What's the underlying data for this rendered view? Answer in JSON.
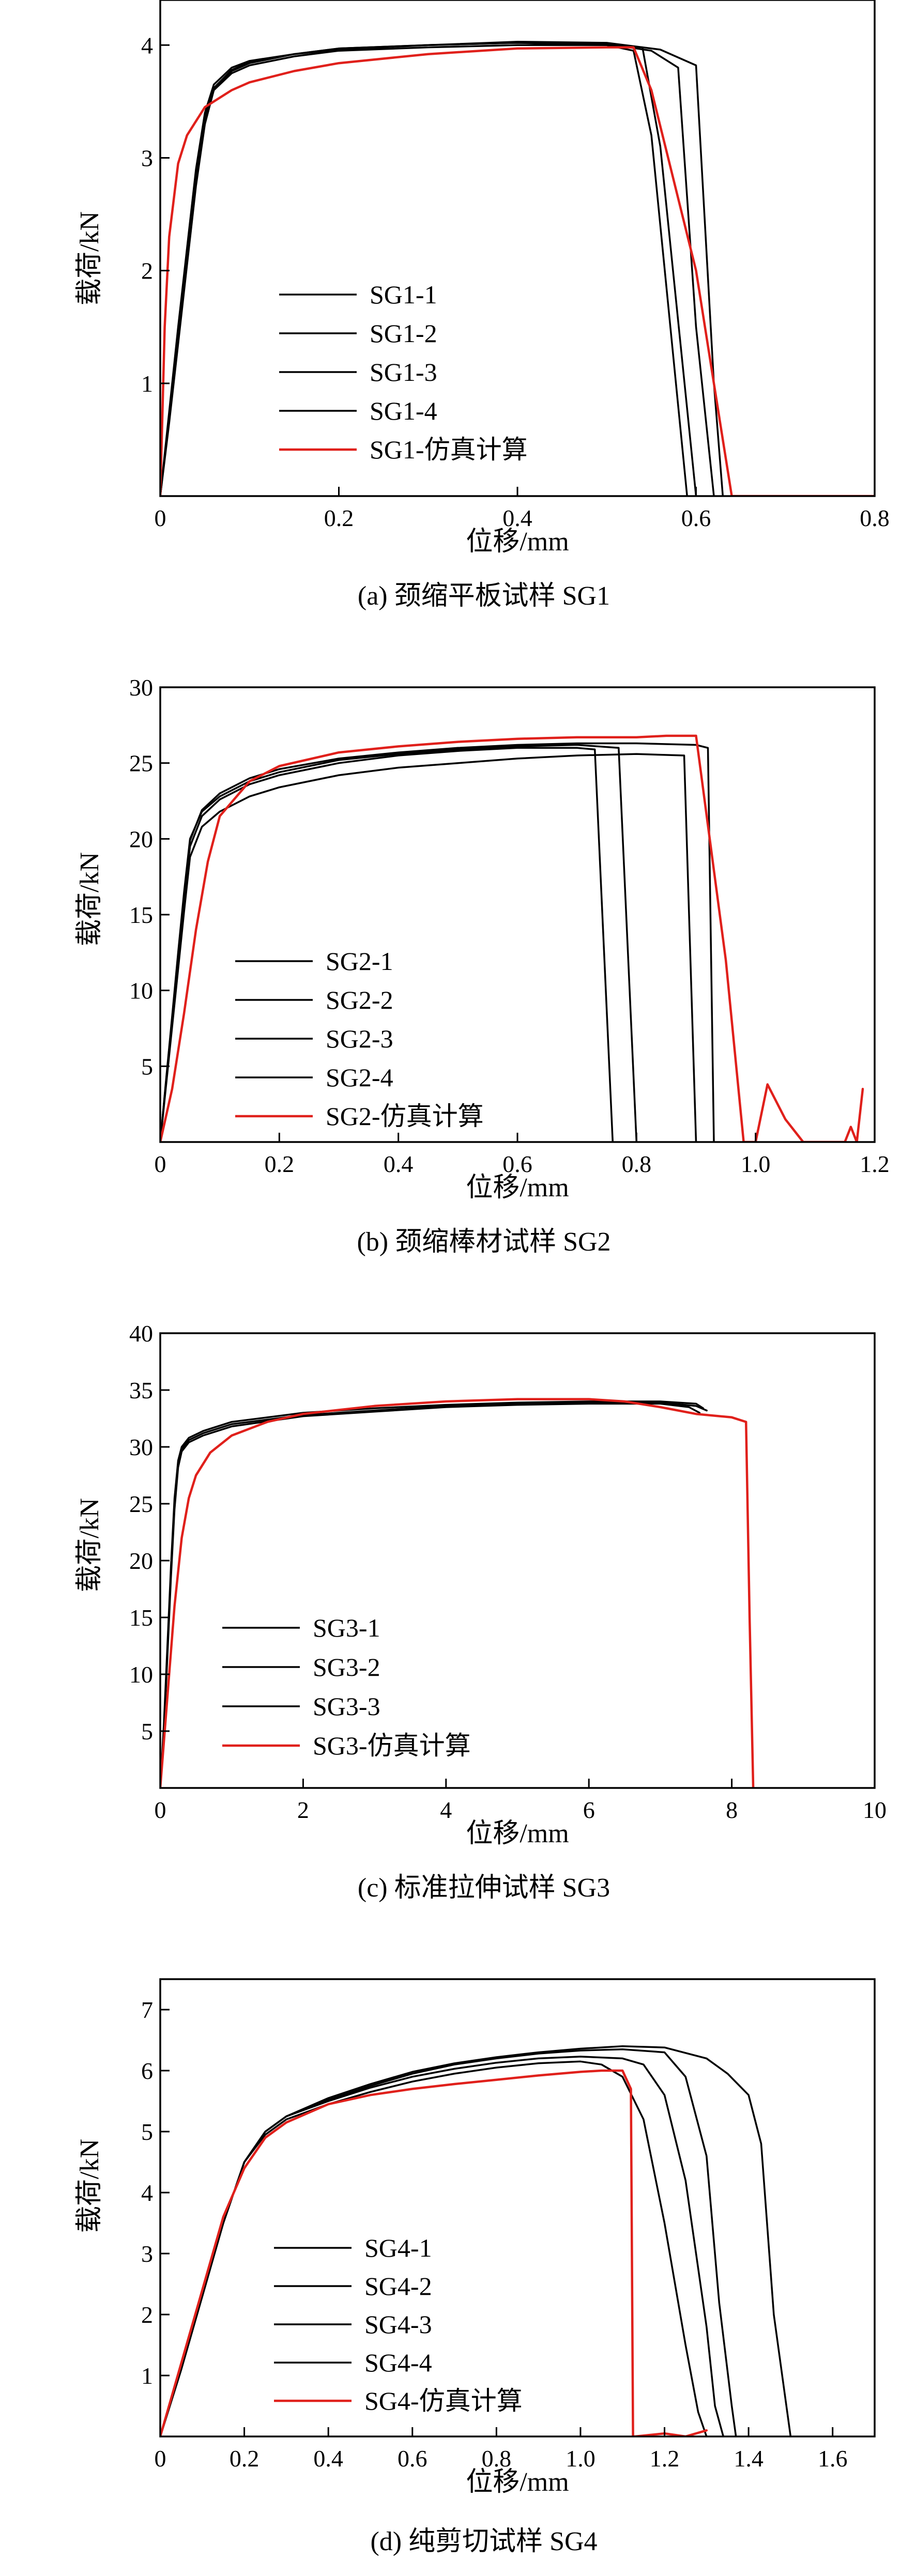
{
  "colors": {
    "experiment": "#000000",
    "simulation": "#e0201b",
    "axis": "#000000",
    "background": "#ffffff"
  },
  "chart_data": [
    {
      "type": "line",
      "caption": "(a) 颈缩平板试样 SG1",
      "xlabel": "位移/mm",
      "ylabel": "载荷/kN",
      "xlim": [
        0,
        0.8
      ],
      "ylim": [
        0,
        4.4
      ],
      "xticks": [
        "0",
        "0.2",
        "0.4",
        "0.6",
        "0.8"
      ],
      "yticks": [
        "1",
        "2",
        "3",
        "4"
      ],
      "grid": false,
      "legend_position": "left-bottom",
      "series": [
        {
          "name": "SG1-1",
          "color": "#000000",
          "x": [
            0,
            0.01,
            0.02,
            0.03,
            0.04,
            0.05,
            0.06,
            0.08,
            0.1,
            0.15,
            0.2,
            0.3,
            0.4,
            0.5,
            0.54,
            0.56,
            0.6
          ],
          "y": [
            0,
            0.7,
            1.4,
            2.1,
            2.8,
            3.35,
            3.6,
            3.75,
            3.82,
            3.9,
            3.95,
            3.98,
            4.0,
            4.0,
            3.98,
            3.1,
            0
          ]
        },
        {
          "name": "SG1-2",
          "color": "#000000",
          "x": [
            0,
            0.01,
            0.02,
            0.03,
            0.04,
            0.05,
            0.06,
            0.08,
            0.1,
            0.15,
            0.2,
            0.3,
            0.4,
            0.5,
            0.53,
            0.55,
            0.59
          ],
          "y": [
            0,
            0.75,
            1.5,
            2.2,
            2.9,
            3.4,
            3.65,
            3.8,
            3.86,
            3.92,
            3.97,
            4.0,
            4.02,
            4.0,
            3.95,
            3.2,
            0
          ]
        },
        {
          "name": "SG1-3",
          "color": "#000000",
          "x": [
            0,
            0.01,
            0.02,
            0.03,
            0.04,
            0.05,
            0.06,
            0.08,
            0.1,
            0.15,
            0.2,
            0.3,
            0.4,
            0.5,
            0.55,
            0.58,
            0.6,
            0.62
          ],
          "y": [
            0,
            0.7,
            1.45,
            2.15,
            2.85,
            3.35,
            3.62,
            3.78,
            3.85,
            3.92,
            3.97,
            4.0,
            4.02,
            4.01,
            3.95,
            3.8,
            1.5,
            0
          ]
        },
        {
          "name": "SG1-4",
          "color": "#000000",
          "x": [
            0,
            0.01,
            0.02,
            0.03,
            0.04,
            0.05,
            0.06,
            0.08,
            0.1,
            0.15,
            0.2,
            0.3,
            0.4,
            0.5,
            0.56,
            0.6,
            0.62,
            0.63
          ],
          "y": [
            0,
            0.65,
            1.35,
            2.05,
            2.75,
            3.3,
            3.6,
            3.77,
            3.84,
            3.92,
            3.96,
            4.0,
            4.03,
            4.02,
            3.96,
            3.82,
            1.0,
            0
          ]
        },
        {
          "name": "SG1-仿真计算",
          "color": "#e0201b",
          "x": [
            0,
            0.005,
            0.01,
            0.02,
            0.03,
            0.05,
            0.08,
            0.1,
            0.15,
            0.2,
            0.3,
            0.4,
            0.5,
            0.53,
            0.55,
            0.6,
            0.62,
            0.64,
            0.8
          ],
          "y": [
            0,
            1.5,
            2.3,
            2.95,
            3.2,
            3.45,
            3.6,
            3.67,
            3.77,
            3.84,
            3.92,
            3.97,
            3.98,
            3.98,
            3.6,
            2.0,
            1.0,
            0,
            0
          ]
        }
      ]
    },
    {
      "type": "line",
      "caption": "(b) 颈缩棒材试样 SG2",
      "xlabel": "位移/mm",
      "ylabel": "载荷/kN",
      "xlim": [
        0,
        1.2
      ],
      "ylim": [
        0,
        30
      ],
      "xticks": [
        "0",
        "0.2",
        "0.4",
        "0.6",
        "0.8",
        "1.0",
        "1.2"
      ],
      "yticks": [
        "5",
        "10",
        "15",
        "20",
        "25",
        "30"
      ],
      "grid": false,
      "legend_position": "left-bottom",
      "series": [
        {
          "name": "SG2-1",
          "color": "#000000",
          "x": [
            0,
            0.01,
            0.02,
            0.03,
            0.04,
            0.05,
            0.07,
            0.1,
            0.15,
            0.2,
            0.3,
            0.4,
            0.5,
            0.6,
            0.7,
            0.73,
            0.76
          ],
          "y": [
            0,
            4,
            8,
            12,
            16,
            19.5,
            21.5,
            22.6,
            23.6,
            24.2,
            25.0,
            25.5,
            25.8,
            26.0,
            26.0,
            25.9,
            0
          ]
        },
        {
          "name": "SG2-2",
          "color": "#000000",
          "x": [
            0,
            0.01,
            0.02,
            0.03,
            0.04,
            0.05,
            0.07,
            0.1,
            0.15,
            0.2,
            0.3,
            0.4,
            0.5,
            0.6,
            0.7,
            0.77,
            0.8
          ],
          "y": [
            0,
            4.2,
            8.3,
            12.5,
            16.5,
            20,
            21.8,
            22.8,
            23.8,
            24.4,
            25.2,
            25.6,
            25.9,
            26.1,
            26.2,
            26.0,
            0
          ]
        },
        {
          "name": "SG2-3",
          "color": "#000000",
          "x": [
            0,
            0.01,
            0.02,
            0.03,
            0.04,
            0.05,
            0.07,
            0.1,
            0.15,
            0.2,
            0.3,
            0.4,
            0.5,
            0.6,
            0.7,
            0.8,
            0.88,
            0.9
          ],
          "y": [
            0,
            3.8,
            7.6,
            11.4,
            15.2,
            18.8,
            20.8,
            21.8,
            22.8,
            23.4,
            24.2,
            24.7,
            25.0,
            25.3,
            25.5,
            25.6,
            25.5,
            0
          ]
        },
        {
          "name": "SG2-4",
          "color": "#000000",
          "x": [
            0,
            0.01,
            0.02,
            0.03,
            0.04,
            0.05,
            0.07,
            0.1,
            0.15,
            0.2,
            0.3,
            0.4,
            0.5,
            0.6,
            0.7,
            0.8,
            0.9,
            0.92,
            0.93
          ],
          "y": [
            0,
            4.1,
            8.2,
            12.3,
            16.3,
            19.9,
            21.9,
            23.0,
            24.0,
            24.6,
            25.3,
            25.7,
            26.0,
            26.2,
            26.3,
            26.3,
            26.2,
            26.0,
            0
          ]
        },
        {
          "name": "SG2-仿真计算",
          "color": "#e0201b",
          "x": [
            0,
            0.02,
            0.04,
            0.06,
            0.08,
            0.1,
            0.15,
            0.2,
            0.3,
            0.4,
            0.5,
            0.6,
            0.7,
            0.8,
            0.85,
            0.9,
            0.95,
            0.98,
            1.0,
            1.02,
            1.05,
            1.07,
            1.08,
            1.1,
            1.15,
            1.16,
            1.17,
            1.18
          ],
          "y": [
            0,
            3.5,
            8.5,
            14,
            18.5,
            21.5,
            23.8,
            24.8,
            25.7,
            26.1,
            26.4,
            26.6,
            26.7,
            26.7,
            26.8,
            26.8,
            12,
            0,
            0,
            3.8,
            1.5,
            0.5,
            0,
            0,
            0,
            1.0,
            0,
            3.5
          ]
        }
      ]
    },
    {
      "type": "line",
      "caption": "(c) 标准拉伸试样 SG3",
      "xlabel": "位移/mm",
      "ylabel": "载荷/kN",
      "xlim": [
        0,
        10
      ],
      "ylim": [
        0,
        40
      ],
      "xticks": [
        "0",
        "2",
        "4",
        "6",
        "8",
        "10"
      ],
      "yticks": [
        "5",
        "10",
        "15",
        "20",
        "25",
        "30",
        "35",
        "40"
      ],
      "grid": false,
      "legend_position": "left-bottom",
      "series": [
        {
          "name": "SG3-1",
          "color": "#000000",
          "x": [
            0,
            0.05,
            0.1,
            0.15,
            0.2,
            0.25,
            0.3,
            0.4,
            0.6,
            1.0,
            2,
            3,
            4,
            5,
            6,
            7,
            7.5,
            7.65
          ],
          "y": [
            0,
            5,
            12,
            19,
            25,
            28.5,
            29.8,
            30.6,
            31.2,
            32.0,
            32.8,
            33.2,
            33.6,
            33.8,
            33.9,
            33.9,
            33.6,
            33.2
          ]
        },
        {
          "name": "SG3-2",
          "color": "#000000",
          "x": [
            0,
            0.05,
            0.1,
            0.15,
            0.2,
            0.25,
            0.3,
            0.4,
            0.6,
            1.0,
            2,
            3,
            4,
            5,
            6,
            7,
            7.5,
            7.6
          ],
          "y": [
            0,
            5.5,
            12.5,
            19.5,
            25.5,
            28.8,
            30.0,
            30.8,
            31.4,
            32.2,
            33.0,
            33.4,
            33.7,
            33.9,
            34.0,
            34.0,
            33.8,
            33.4
          ]
        },
        {
          "name": "SG3-3",
          "color": "#000000",
          "x": [
            0,
            0.05,
            0.1,
            0.15,
            0.2,
            0.25,
            0.3,
            0.4,
            0.6,
            1.0,
            2,
            3,
            4,
            5,
            6,
            7,
            7.4,
            7.55
          ],
          "y": [
            0,
            4.8,
            11.5,
            18.5,
            24.5,
            28.2,
            29.6,
            30.4,
            31.0,
            31.8,
            32.7,
            33.1,
            33.5,
            33.7,
            33.8,
            33.8,
            33.5,
            33.0
          ]
        },
        {
          "name": "SG3-仿真计算",
          "color": "#e0201b",
          "x": [
            0,
            0.1,
            0.2,
            0.3,
            0.4,
            0.5,
            0.7,
            1.0,
            1.5,
            2,
            3,
            4,
            5,
            6,
            6.5,
            7,
            7.5,
            8,
            8.2,
            8.25,
            8.3
          ],
          "y": [
            0,
            8,
            16,
            22,
            25.5,
            27.5,
            29.5,
            31.0,
            32.2,
            32.9,
            33.6,
            34.0,
            34.2,
            34.2,
            34.0,
            33.5,
            32.9,
            32.6,
            32.2,
            15,
            0
          ]
        }
      ]
    },
    {
      "type": "line",
      "caption": "(d) 纯剪切试样 SG4",
      "xlabel": "位移/mm",
      "ylabel": "载荷/kN",
      "xlim": [
        0,
        1.7
      ],
      "ylim": [
        0,
        7.5
      ],
      "xticks": [
        "0",
        "0.2",
        "0.4",
        "0.6",
        "0.8",
        "1.0",
        "1.2",
        "1.4",
        "1.6"
      ],
      "yticks": [
        "1",
        "2",
        "3",
        "4",
        "5",
        "6",
        "7"
      ],
      "grid": false,
      "legend_position": "left-bottom",
      "series": [
        {
          "name": "SG4-1",
          "color": "#000000",
          "x": [
            0,
            0.05,
            0.1,
            0.15,
            0.2,
            0.25,
            0.3,
            0.4,
            0.5,
            0.6,
            0.7,
            0.8,
            0.9,
            1.0,
            1.05,
            1.1,
            1.15,
            1.2,
            1.25,
            1.28,
            1.3
          ],
          "y": [
            0,
            1.1,
            2.3,
            3.5,
            4.5,
            4.95,
            5.2,
            5.45,
            5.65,
            5.82,
            5.95,
            6.05,
            6.12,
            6.15,
            6.1,
            5.9,
            5.2,
            3.5,
            1.5,
            0.4,
            0
          ]
        },
        {
          "name": "SG4-2",
          "color": "#000000",
          "x": [
            0,
            0.05,
            0.1,
            0.15,
            0.2,
            0.25,
            0.3,
            0.4,
            0.5,
            0.6,
            0.7,
            0.8,
            0.9,
            1.0,
            1.1,
            1.15,
            1.2,
            1.25,
            1.3,
            1.32,
            1.34
          ],
          "y": [
            0,
            1.1,
            2.3,
            3.5,
            4.5,
            5.0,
            5.25,
            5.5,
            5.72,
            5.9,
            6.03,
            6.13,
            6.2,
            6.23,
            6.2,
            6.1,
            5.6,
            4.2,
            1.8,
            0.5,
            0
          ]
        },
        {
          "name": "SG4-3",
          "color": "#000000",
          "x": [
            0,
            0.05,
            0.1,
            0.15,
            0.2,
            0.25,
            0.3,
            0.4,
            0.5,
            0.6,
            0.7,
            0.8,
            0.9,
            1.0,
            1.1,
            1.2,
            1.25,
            1.3,
            1.33,
            1.36,
            1.37
          ],
          "y": [
            0,
            1.1,
            2.3,
            3.5,
            4.5,
            5.0,
            5.25,
            5.52,
            5.75,
            5.95,
            6.1,
            6.2,
            6.28,
            6.33,
            6.35,
            6.3,
            5.9,
            4.6,
            2.2,
            0.5,
            0
          ]
        },
        {
          "name": "SG4-4",
          "color": "#000000",
          "x": [
            0,
            0.05,
            0.1,
            0.15,
            0.2,
            0.25,
            0.3,
            0.4,
            0.5,
            0.6,
            0.7,
            0.8,
            0.9,
            1.0,
            1.1,
            1.2,
            1.3,
            1.35,
            1.4,
            1.43,
            1.46,
            1.5
          ],
          "y": [
            0,
            1.1,
            2.3,
            3.5,
            4.5,
            5.0,
            5.25,
            5.55,
            5.78,
            5.98,
            6.12,
            6.22,
            6.3,
            6.36,
            6.4,
            6.38,
            6.2,
            5.95,
            5.6,
            4.8,
            2.0,
            0
          ]
        },
        {
          "name": "SG4-仿真计算",
          "color": "#e0201b",
          "x": [
            0,
            0.05,
            0.1,
            0.15,
            0.2,
            0.25,
            0.3,
            0.4,
            0.5,
            0.6,
            0.7,
            0.8,
            0.9,
            1.0,
            1.05,
            1.1,
            1.12,
            1.125,
            1.13,
            1.2,
            1.25,
            1.3
          ],
          "y": [
            0,
            1.2,
            2.4,
            3.6,
            4.4,
            4.9,
            5.15,
            5.45,
            5.6,
            5.7,
            5.78,
            5.85,
            5.92,
            5.98,
            6.0,
            6.0,
            5.7,
            0,
            0,
            0.05,
            0,
            0.1
          ]
        }
      ]
    }
  ]
}
